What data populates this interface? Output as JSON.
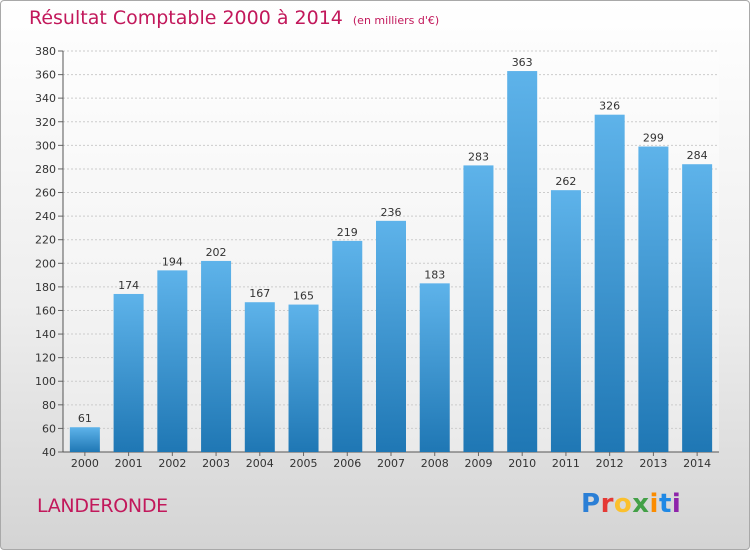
{
  "header": {
    "title": "Résultat Comptable 2000 à 2014",
    "unit": "(en milliers d'€)"
  },
  "footer": {
    "commune": "LANDERONDE",
    "logo_text": "Proxiti"
  },
  "colors": {
    "title": "#c2185b",
    "bar_top": "#5eb3ea",
    "bar_bottom": "#1f77b4",
    "grid": "#cccccc"
  },
  "chart_data": {
    "type": "bar",
    "title": "Résultat Comptable 2000 à 2014",
    "subtitle": "(en milliers d'€)",
    "xlabel": "",
    "ylabel": "",
    "categories": [
      "2000",
      "2001",
      "2002",
      "2003",
      "2004",
      "2005",
      "2006",
      "2007",
      "2008",
      "2009",
      "2010",
      "2011",
      "2012",
      "2013",
      "2014"
    ],
    "values": [
      61,
      174,
      194,
      202,
      167,
      165,
      219,
      236,
      183,
      283,
      363,
      262,
      326,
      299,
      284
    ],
    "ylim": [
      40,
      380
    ],
    "yticks": [
      40,
      60,
      80,
      100,
      120,
      140,
      160,
      180,
      200,
      220,
      240,
      260,
      280,
      300,
      320,
      340,
      360,
      380
    ],
    "grid": true,
    "data_labels": true
  }
}
